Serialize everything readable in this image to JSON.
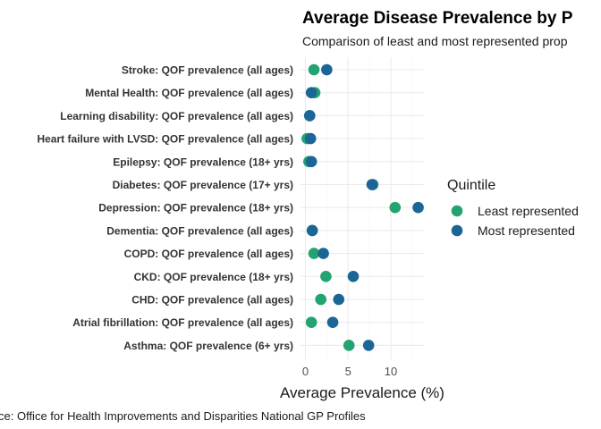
{
  "chart_data": {
    "type": "scatter",
    "title": "Average Disease Prevalence by P",
    "subtitle": "Comparison of least and most represented prop",
    "xlabel": "Average Prevalence (%)",
    "ylabel": "",
    "caption": "ce: Office for Health Improvements and Disparities National GP Profiles",
    "xlim": [
      -0.3,
      14
    ],
    "xticks": [
      0,
      5,
      10
    ],
    "grid": true,
    "legend": {
      "title": "Quintile",
      "position": "right"
    },
    "categories": [
      "Stroke: QOF prevalence (all ages)",
      "Mental Health: QOF prevalence (all ages)",
      "Learning disability: QOF prevalence (all ages)",
      "Heart failure with LVSD: QOF prevalence (all ages)",
      "Epilepsy: QOF prevalence (18+ yrs)",
      "Diabetes: QOF prevalence (17+ yrs)",
      "Depression: QOF prevalence (18+ yrs)",
      "Dementia: QOF prevalence (all ages)",
      "COPD: QOF prevalence (all ages)",
      "CKD: QOF prevalence (18+ yrs)",
      "CHD: QOF prevalence (all ages)",
      "Atrial fibrillation: QOF prevalence (all ages)",
      "Asthma: QOF prevalence (6+ yrs)"
    ],
    "series": [
      {
        "name": "Least represented",
        "color": "#22a36f",
        "values": [
          1.0,
          1.1,
          0.5,
          0.2,
          0.4,
          7.9,
          10.5,
          0.8,
          1.0,
          2.4,
          1.8,
          0.7,
          5.1
        ]
      },
      {
        "name": "Most represented",
        "color": "#1b6597",
        "values": [
          2.5,
          0.7,
          0.5,
          0.6,
          0.7,
          7.8,
          13.2,
          0.8,
          2.1,
          5.6,
          3.9,
          3.2,
          7.4
        ]
      }
    ]
  }
}
